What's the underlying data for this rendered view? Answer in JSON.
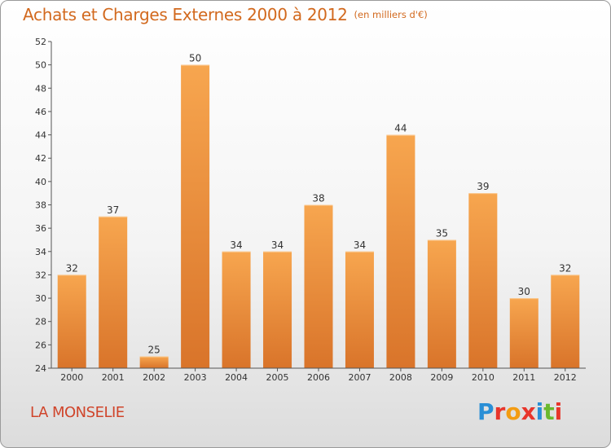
{
  "header": {
    "title": "Achats et Charges Externes 2000 à 2012",
    "subtitle": "(en milliers d'€)"
  },
  "footer": {
    "commune": "LA MONSELIE",
    "logo_text": "Proxiti",
    "logo_colors": [
      "#2a8fd6",
      "#e8352b",
      "#f39c12",
      "#e8352b",
      "#2a8fd6",
      "#6ab82e",
      "#e8352b"
    ]
  },
  "colors": {
    "bar_light": "#f7a64f",
    "bar_dark": "#d9742a",
    "accent_text": "#d2691e"
  },
  "chart_data": {
    "type": "bar",
    "title": "Achats et Charges Externes 2000 à 2012",
    "subtitle": "(en milliers d'€)",
    "xlabel": "",
    "ylabel": "",
    "categories": [
      "2000",
      "2001",
      "2002",
      "2003",
      "2004",
      "2005",
      "2006",
      "2007",
      "2008",
      "2009",
      "2010",
      "2011",
      "2012"
    ],
    "values": [
      32,
      37,
      25,
      50,
      34,
      34,
      38,
      34,
      44,
      35,
      39,
      30,
      32
    ],
    "ylim": [
      24,
      52
    ],
    "yticks": [
      24,
      26,
      28,
      30,
      32,
      34,
      36,
      38,
      40,
      42,
      44,
      46,
      48,
      50,
      52
    ],
    "grid": false,
    "legend": "none"
  }
}
